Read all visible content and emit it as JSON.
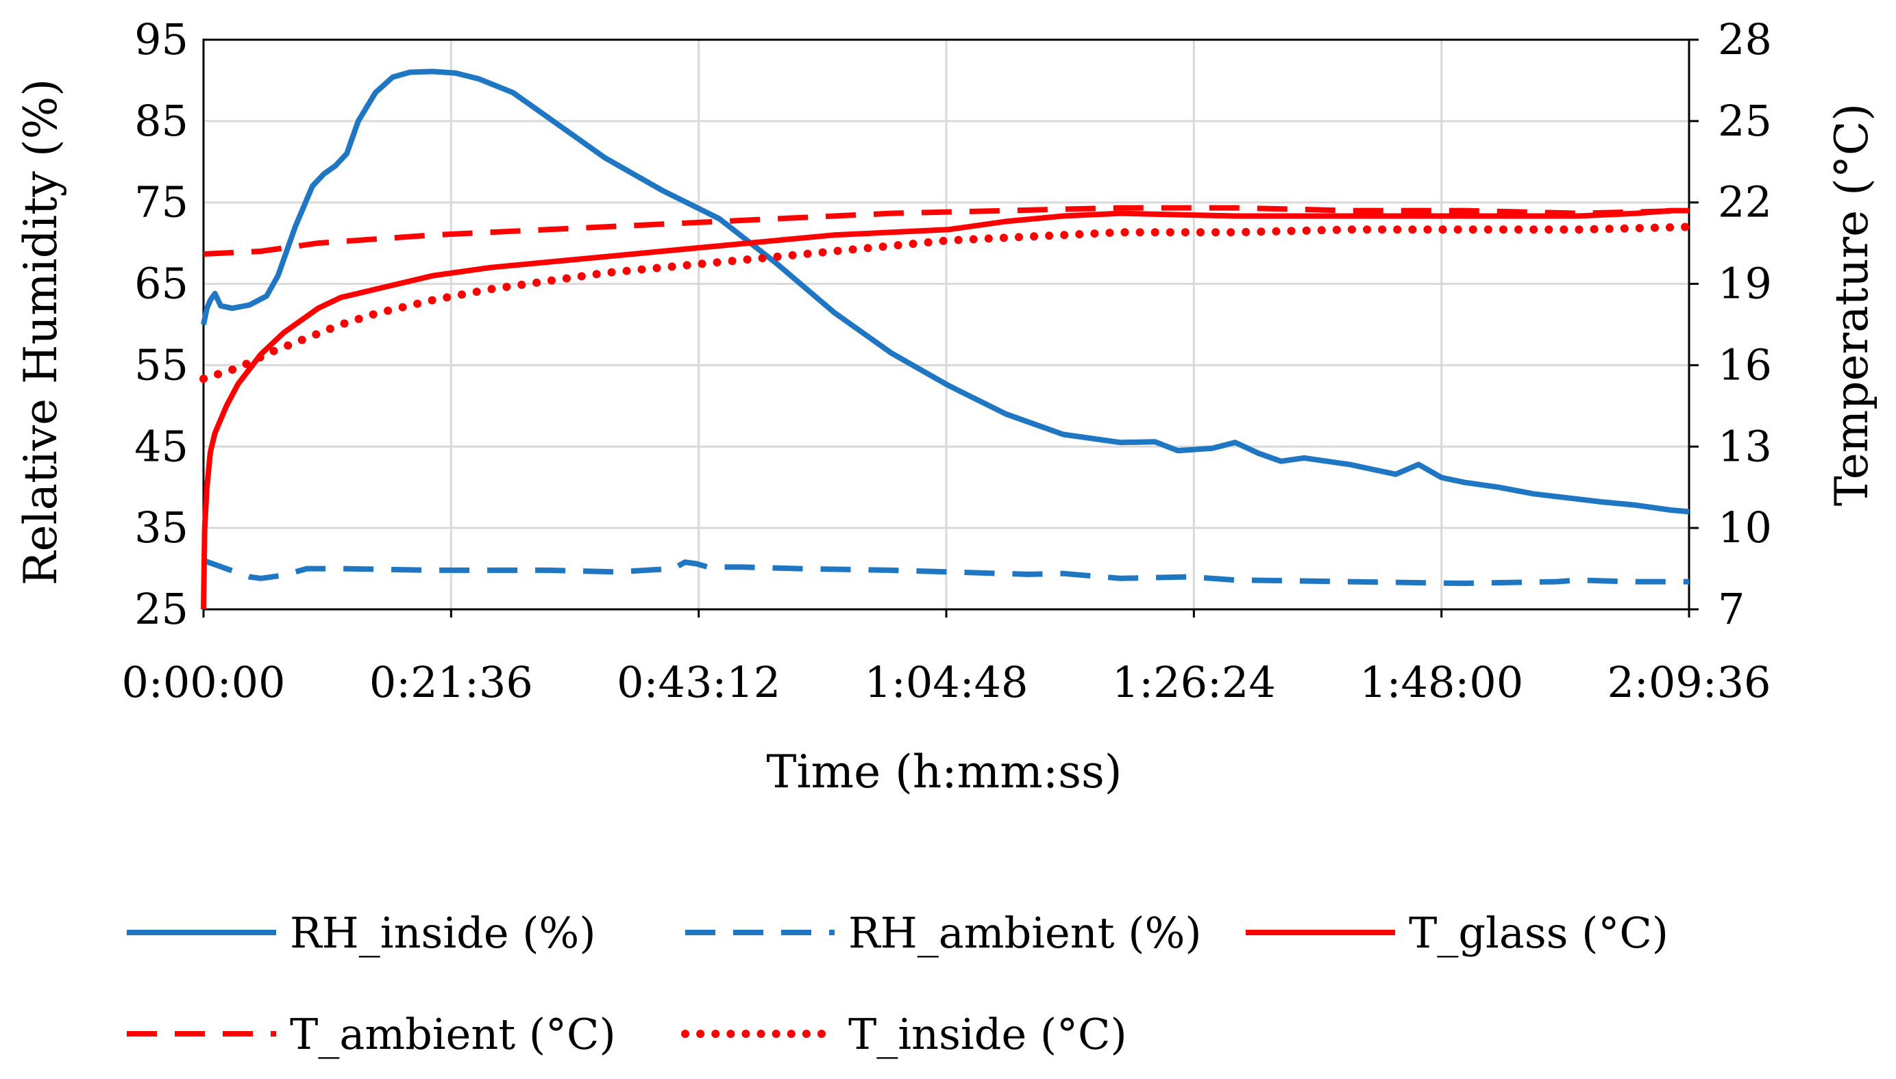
{
  "chart_data": {
    "type": "line",
    "title": "",
    "xlabel": "Time (h:mm:ss)",
    "ylabel": "Relative Humidity (%)",
    "y2label": "Temperature (°C)",
    "x_unit": "minutes",
    "xlim": [
      0,
      129.6
    ],
    "ylim": [
      25,
      95
    ],
    "y2lim": [
      7,
      28
    ],
    "x_tick_values": [
      0,
      21.6,
      43.2,
      64.8,
      86.4,
      108.0,
      129.6
    ],
    "x_tick_labels": [
      "0:00:00",
      "0:21:36",
      "0:43:12",
      "1:04:48",
      "1:26:24",
      "1:48:00",
      "2:09:36"
    ],
    "y_tick_labels": [
      "25",
      "35",
      "45",
      "55",
      "65",
      "75",
      "85",
      "95"
    ],
    "y2_tick_labels": [
      "7",
      "10",
      "13",
      "16",
      "19",
      "22",
      "25",
      "28"
    ],
    "grid": true,
    "legend_position": "bottom",
    "series": [
      {
        "name": "RH_inside (%)",
        "axis": "left",
        "color": "#1f77c4",
        "style": "solid",
        "x": [
          0,
          0.3,
          0.6,
          1,
          1.5,
          2.5,
          4,
          5.5,
          6.5,
          8,
          9.5,
          10.5,
          11.5,
          12.5,
          13.5,
          15,
          16.5,
          18,
          20,
          22,
          24,
          27,
          30,
          35,
          40,
          45,
          50,
          55,
          60,
          65,
          70,
          75,
          80,
          83,
          85,
          88,
          90,
          92,
          94,
          96,
          98,
          100,
          102,
          104,
          106,
          108,
          110,
          113,
          116,
          119,
          122,
          125,
          128,
          129.6
        ],
        "values": [
          60,
          62,
          63,
          63.8,
          62.3,
          62,
          62.4,
          63.5,
          66,
          72,
          77,
          78.5,
          79.5,
          81,
          85,
          88.5,
          90.4,
          91,
          91.1,
          90.9,
          90.2,
          88.5,
          85.5,
          80.5,
          76.5,
          73,
          67.5,
          61.5,
          56.5,
          52.5,
          49,
          46.5,
          45.5,
          45.6,
          44.5,
          44.8,
          45.5,
          44.2,
          43.2,
          43.6,
          43.2,
          42.8,
          42.2,
          41.6,
          42.8,
          41.2,
          40.6,
          40,
          39.2,
          38.7,
          38.2,
          37.8,
          37.2,
          37
        ]
      },
      {
        "name": "RH_ambient (%)",
        "axis": "left",
        "color": "#1f77c4",
        "style": "dashed",
        "x": [
          0,
          2,
          4,
          5,
          7,
          9,
          10.5,
          12,
          20,
          30,
          36,
          41,
          42,
          43,
          44,
          47,
          52,
          60,
          65,
          72,
          75,
          80,
          86,
          90,
          100,
          110,
          118,
          120,
          122,
          125,
          129.6
        ],
        "values": [
          31,
          30,
          29,
          28.8,
          29.2,
          30,
          30,
          30,
          29.8,
          29.8,
          29.6,
          30,
          30.8,
          30.6,
          30.2,
          30.2,
          30,
          29.8,
          29.6,
          29.3,
          29.4,
          28.8,
          29,
          28.6,
          28.4,
          28.2,
          28.4,
          28.6,
          28.5,
          28.4,
          28.4
        ]
      },
      {
        "name": "T_glass (°C)",
        "axis": "right",
        "color": "#ff0000",
        "style": "solid",
        "x": [
          0,
          0.1,
          0.3,
          0.6,
          1,
          2,
          3,
          5,
          7,
          9,
          10,
          12,
          15,
          18,
          20,
          25,
          30,
          35,
          40,
          45,
          50,
          55,
          60,
          65,
          70,
          75,
          80,
          90,
          100,
          110,
          120,
          125,
          128,
          129.6
        ],
        "values": [
          7,
          10,
          11.5,
          12.8,
          13.5,
          14.5,
          15.3,
          16.4,
          17.2,
          17.8,
          18.1,
          18.5,
          18.8,
          19.1,
          19.3,
          19.6,
          19.8,
          20.0,
          20.2,
          20.4,
          20.6,
          20.8,
          20.9,
          21.0,
          21.3,
          21.5,
          21.6,
          21.5,
          21.5,
          21.5,
          21.5,
          21.6,
          21.7,
          21.7
        ]
      },
      {
        "name": "T_ambient (°C)",
        "axis": "right",
        "color": "#ff0000",
        "style": "dashed",
        "x": [
          0,
          5,
          10,
          20,
          30,
          40,
          50,
          60,
          70,
          80,
          90,
          100,
          110,
          120,
          129.6
        ],
        "values": [
          20.1,
          20.2,
          20.5,
          20.8,
          21.0,
          21.2,
          21.4,
          21.6,
          21.7,
          21.8,
          21.8,
          21.7,
          21.7,
          21.6,
          21.7
        ]
      },
      {
        "name": "T_inside (°C)",
        "axis": "right",
        "color": "#ff0000",
        "style": "dotted",
        "x": [
          0,
          3,
          6,
          9,
          12,
          15,
          20,
          25,
          30,
          35,
          40,
          45,
          50,
          55,
          60,
          65,
          70,
          75,
          80,
          90,
          100,
          110,
          120,
          129.6
        ],
        "values": [
          15.5,
          15.9,
          16.5,
          17.0,
          17.5,
          17.9,
          18.4,
          18.8,
          19.1,
          19.4,
          19.6,
          19.8,
          20.0,
          20.2,
          20.4,
          20.6,
          20.7,
          20.8,
          20.9,
          20.9,
          21.0,
          21.0,
          21.0,
          21.1
        ]
      }
    ]
  }
}
